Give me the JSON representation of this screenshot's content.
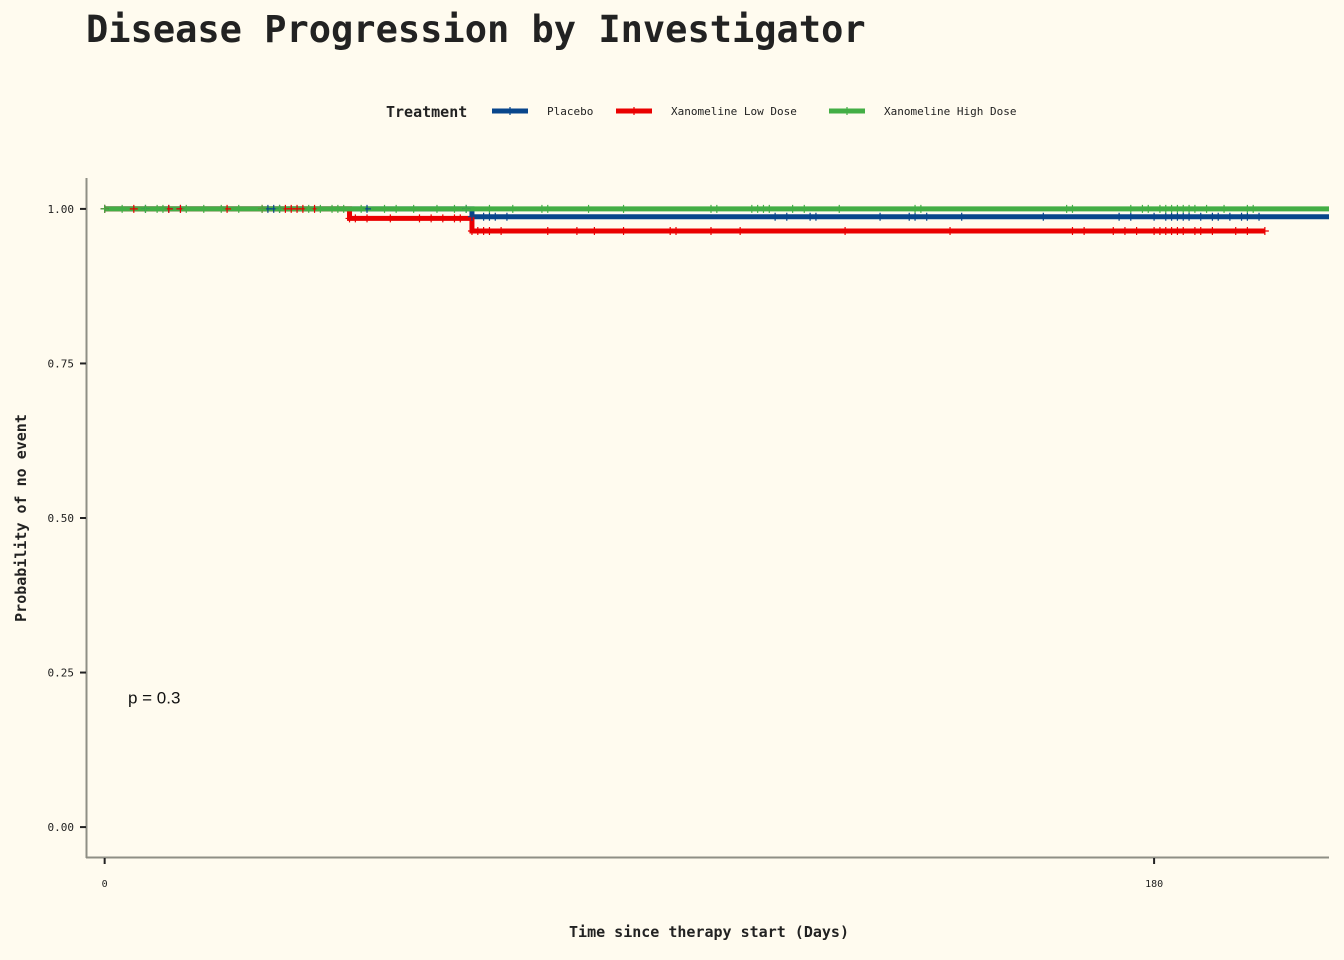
{
  "chart_data": {
    "type": "line",
    "title": "Disease Progression by Investigator",
    "xlabel": "Time since therapy start (Days)",
    "ylabel": "Probability of no event",
    "xlim": [
      -3.2,
      210
    ],
    "ylim": [
      -0.05,
      1.05
    ],
    "x_ticks": [
      0,
      180
    ],
    "x_tick_labels": [
      "0",
      "180"
    ],
    "y_ticks": [
      0,
      0.25,
      0.5,
      0.75,
      1.0
    ],
    "y_tick_labels": [
      "0.00",
      "0.25",
      "0.50",
      "0.75",
      "1.00"
    ],
    "legend": {
      "title": "Treatment",
      "position": "top"
    },
    "annotation": {
      "text": "p = 0.3",
      "x": 4,
      "y": 0.2
    },
    "grid": false,
    "series": [
      {
        "name": "Placebo",
        "color": "#08468c",
        "steps": [
          [
            0,
            1.0
          ],
          [
            63,
            0.9874
          ],
          [
            210,
            0.9874
          ]
        ],
        "censor_times": [
          0,
          7,
          11,
          13,
          28,
          29,
          30,
          45,
          62,
          63,
          65,
          66,
          67,
          69,
          115,
          117,
          121,
          122,
          133,
          138,
          139,
          141,
          147,
          161,
          174,
          176,
          180,
          182,
          183,
          184,
          185,
          186,
          188,
          190,
          191,
          193,
          195,
          196,
          198
        ]
      },
      {
        "name": "Xanomeline Low Dose",
        "color": "#ea0000",
        "steps": [
          [
            0,
            1.0
          ],
          [
            42,
            0.9846
          ],
          [
            63,
            0.9643
          ],
          [
            199,
            0.9643
          ]
        ],
        "censor_times": [
          0,
          5,
          11,
          13,
          21,
          27,
          31,
          32,
          33,
          34,
          36,
          42,
          43,
          45,
          49,
          54,
          56,
          58,
          60,
          61,
          63,
          64,
          65,
          66,
          68,
          76,
          81,
          84,
          89,
          97,
          98,
          104,
          109,
          127,
          145,
          166,
          168,
          173,
          175,
          177,
          180,
          181,
          182,
          183,
          184,
          185,
          187,
          188,
          190,
          194,
          196,
          199
        ]
      },
      {
        "name": "Xanomeline High Dose",
        "color": "#43ae45",
        "steps": [
          [
            0,
            1.0
          ],
          [
            210,
            1.0
          ]
        ],
        "censor_times": [
          0,
          3,
          7,
          9,
          10,
          14,
          17,
          20,
          23,
          27,
          30,
          35,
          37,
          39,
          40,
          41,
          44,
          48,
          50,
          53,
          57,
          60,
          62,
          66,
          70,
          75,
          76,
          83,
          89,
          104,
          105,
          111,
          112,
          113,
          114,
          118,
          120,
          126,
          139,
          140,
          165,
          166,
          176,
          178,
          179,
          181,
          182,
          183,
          184,
          185,
          186,
          187,
          189,
          192,
          196,
          197
        ]
      }
    ]
  }
}
